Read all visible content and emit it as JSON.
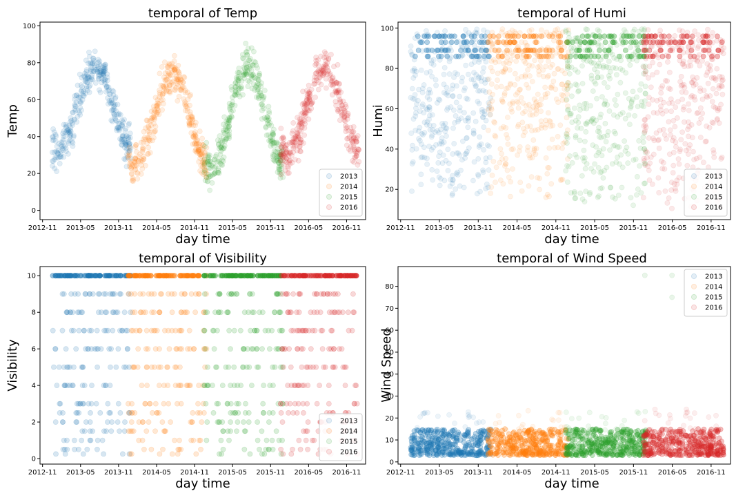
{
  "colors": {
    "2013": "#1f77b4",
    "2014": "#ff7f0e",
    "2015": "#2ca02c",
    "2016": "#d62728"
  },
  "chart_data": [
    {
      "type": "scatter",
      "title": "temporal of Temp",
      "xlabel": "day time",
      "ylabel": "Temp",
      "xticks": [
        "2012-11",
        "2013-05",
        "2013-11",
        "2014-05",
        "2014-11",
        "2015-05",
        "2015-11",
        "2016-05",
        "2016-11"
      ],
      "yticks": [
        "0",
        "20",
        "40",
        "60",
        "80",
        "100"
      ],
      "ylim": [
        -5,
        102
      ],
      "legend": [
        "2013",
        "2014",
        "2015",
        "2016"
      ],
      "legend_position": "lower-right",
      "series": [
        {
          "name": "2013",
          "x_range": [
            "2013-01",
            "2013-12"
          ],
          "pattern": "seasonal",
          "y_low": 33,
          "y_high": 77,
          "spread": 9
        },
        {
          "name": "2014",
          "x_range": [
            "2014-01",
            "2014-12"
          ],
          "pattern": "seasonal",
          "y_low": 24,
          "y_high": 73,
          "spread": 9
        },
        {
          "name": "2015",
          "x_range": [
            "2015-01",
            "2015-12"
          ],
          "pattern": "seasonal",
          "y_low": 22,
          "y_high": 78,
          "spread": 9
        },
        {
          "name": "2016",
          "x_range": [
            "2016-01",
            "2016-12"
          ],
          "pattern": "seasonal",
          "y_low": 30,
          "y_high": 77,
          "spread": 9
        }
      ]
    },
    {
      "type": "scatter",
      "title": "temporal of Humi",
      "xlabel": "day time",
      "ylabel": "Humi",
      "xticks": [
        "2012-11",
        "2013-05",
        "2013-11",
        "2014-05",
        "2014-11",
        "2015-05",
        "2015-11",
        "2016-05",
        "2016-11"
      ],
      "yticks": [
        "20",
        "40",
        "60",
        "80",
        "100"
      ],
      "ylim": [
        5,
        103
      ],
      "legend": [
        "2013",
        "2014",
        "2015",
        "2016"
      ],
      "legend_position": "lower-right",
      "series": [
        {
          "name": "2013",
          "x_range": [
            "2013-01",
            "2013-12"
          ],
          "pattern": "uniform",
          "y_min": 15,
          "y_max": 100
        },
        {
          "name": "2014",
          "x_range": [
            "2014-01",
            "2014-12"
          ],
          "pattern": "uniform",
          "y_min": 15,
          "y_max": 100
        },
        {
          "name": "2015",
          "x_range": [
            "2015-01",
            "2015-12"
          ],
          "pattern": "uniform",
          "y_min": 12,
          "y_max": 100
        },
        {
          "name": "2016",
          "x_range": [
            "2016-01",
            "2016-12"
          ],
          "pattern": "uniform",
          "y_min": 10,
          "y_max": 100
        }
      ]
    },
    {
      "type": "scatter",
      "title": "temporal of Visibility",
      "xlabel": "day time",
      "ylabel": "Visibility",
      "xticks": [
        "2012-11",
        "2013-05",
        "2013-11",
        "2014-05",
        "2014-11",
        "2015-05",
        "2015-11",
        "2016-05",
        "2016-11"
      ],
      "yticks": [
        "0",
        "2",
        "4",
        "6",
        "8",
        "10"
      ],
      "ylim": [
        -0.3,
        10.5
      ],
      "legend": [
        "2013",
        "2014",
        "2015",
        "2016"
      ],
      "legend_position": "lower-right",
      "levels": [
        10,
        9,
        8,
        7,
        6,
        5,
        4,
        3,
        2.5,
        2,
        1.5,
        1,
        0.5,
        0.25
      ],
      "series": [
        {
          "name": "2013",
          "x_range": [
            "2013-01",
            "2013-12"
          ],
          "pattern": "discrete"
        },
        {
          "name": "2014",
          "x_range": [
            "2014-01",
            "2014-12"
          ],
          "pattern": "discrete"
        },
        {
          "name": "2015",
          "x_range": [
            "2015-01",
            "2015-12"
          ],
          "pattern": "discrete"
        },
        {
          "name": "2016",
          "x_range": [
            "2016-01",
            "2016-12"
          ],
          "pattern": "discrete"
        }
      ]
    },
    {
      "type": "scatter",
      "title": "temporal of Wind Speed",
      "xlabel": "day time",
      "ylabel": "Wind Speed",
      "xticks": [
        "2012-11",
        "2013-05",
        "2013-11",
        "2014-05",
        "2014-11",
        "2015-05",
        "2015-11",
        "2016-05",
        "2016-11"
      ],
      "yticks": [
        "0",
        "10",
        "20",
        "30",
        "40",
        "50",
        "60",
        "70",
        "80"
      ],
      "ylim": [
        -1,
        89
      ],
      "legend": [
        "2013",
        "2014",
        "2015",
        "2016"
      ],
      "legend_position": "upper-right",
      "series": [
        {
          "name": "2013",
          "x_range": [
            "2013-01",
            "2013-12"
          ],
          "pattern": "low",
          "y_min": 3,
          "y_max": 15
        },
        {
          "name": "2014",
          "x_range": [
            "2014-01",
            "2014-12"
          ],
          "pattern": "low",
          "y_min": 3,
          "y_max": 15
        },
        {
          "name": "2015",
          "x_range": [
            "2015-01",
            "2015-12"
          ],
          "pattern": "low",
          "y_min": 3,
          "y_max": 15,
          "outliers": [
            [
              2015.98,
              85
            ],
            [
              2016.33,
              85
            ],
            [
              2016.33,
              75
            ]
          ]
        },
        {
          "name": "2016",
          "x_range": [
            "2016-01",
            "2016-12"
          ],
          "pattern": "low",
          "y_min": 3,
          "y_max": 15
        }
      ]
    }
  ]
}
